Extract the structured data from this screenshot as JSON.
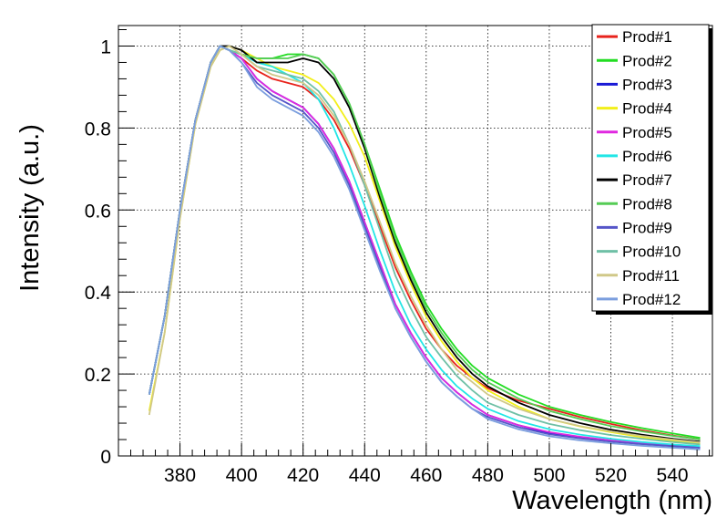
{
  "chart_data": {
    "type": "line",
    "title": "",
    "xlabel": "Wavelength (nm)",
    "ylabel": "Intensity (a.u.)",
    "xlim": [
      360,
      553
    ],
    "ylim": [
      0,
      1.05
    ],
    "x_ticks": [
      380,
      400,
      420,
      440,
      460,
      480,
      500,
      520,
      540
    ],
    "y_ticks": [
      0,
      0.2,
      0.4,
      0.6,
      0.8,
      1
    ],
    "x_tick_labels": [
      "380",
      "400",
      "420",
      "440",
      "460",
      "480",
      "500",
      "520",
      "540"
    ],
    "y_tick_labels": [
      "0",
      "0.2",
      "0.4",
      "0.6",
      "0.8",
      "1"
    ],
    "grid": true,
    "legend_position": "top-right",
    "x": [
      370,
      375,
      380,
      385,
      390,
      393,
      396,
      400,
      405,
      410,
      415,
      420,
      425,
      430,
      435,
      440,
      445,
      450,
      455,
      460,
      465,
      470,
      475,
      480,
      490,
      500,
      510,
      520,
      530,
      540,
      549
    ],
    "series": [
      {
        "name": "Prod#1",
        "color": "#e8231c",
        "values": [
          0.15,
          0.34,
          0.6,
          0.82,
          0.96,
          1.0,
          0.99,
          0.97,
          0.94,
          0.92,
          0.91,
          0.9,
          0.87,
          0.82,
          0.75,
          0.66,
          0.56,
          0.46,
          0.38,
          0.31,
          0.26,
          0.22,
          0.19,
          0.165,
          0.135,
          0.115,
          0.095,
          0.078,
          0.063,
          0.05,
          0.04
        ]
      },
      {
        "name": "Prod#2",
        "color": "#22dd22",
        "values": [
          0.15,
          0.34,
          0.6,
          0.82,
          0.96,
          1.0,
          0.99,
          0.98,
          0.97,
          0.97,
          0.98,
          0.98,
          0.97,
          0.93,
          0.86,
          0.76,
          0.65,
          0.54,
          0.45,
          0.37,
          0.31,
          0.26,
          0.22,
          0.19,
          0.15,
          0.12,
          0.1,
          0.083,
          0.068,
          0.055,
          0.044
        ]
      },
      {
        "name": "Prod#3",
        "color": "#1a1ad6",
        "values": [
          0.15,
          0.34,
          0.6,
          0.82,
          0.96,
          1.0,
          0.99,
          0.97,
          0.92,
          0.89,
          0.87,
          0.85,
          0.81,
          0.75,
          0.67,
          0.57,
          0.47,
          0.37,
          0.3,
          0.24,
          0.19,
          0.155,
          0.125,
          0.1,
          0.075,
          0.055,
          0.045,
          0.036,
          0.029,
          0.024,
          0.02
        ]
      },
      {
        "name": "Prod#4",
        "color": "#f2ef1a",
        "values": [
          0.11,
          0.3,
          0.58,
          0.81,
          0.95,
          0.99,
          1.0,
          0.99,
          0.97,
          0.95,
          0.94,
          0.93,
          0.91,
          0.87,
          0.81,
          0.73,
          0.62,
          0.51,
          0.42,
          0.34,
          0.28,
          0.23,
          0.19,
          0.16,
          0.12,
          0.09,
          0.072,
          0.058,
          0.046,
          0.037,
          0.03
        ]
      },
      {
        "name": "Prod#5",
        "color": "#e028e0",
        "values": [
          0.15,
          0.34,
          0.6,
          0.82,
          0.96,
          1.0,
          0.99,
          0.97,
          0.92,
          0.89,
          0.87,
          0.85,
          0.81,
          0.75,
          0.67,
          0.57,
          0.47,
          0.37,
          0.3,
          0.24,
          0.19,
          0.155,
          0.125,
          0.1,
          0.075,
          0.058,
          0.047,
          0.038,
          0.031,
          0.026,
          0.022
        ]
      },
      {
        "name": "Prod#6",
        "color": "#22e6e6",
        "values": [
          0.15,
          0.34,
          0.6,
          0.82,
          0.96,
          1.0,
          0.99,
          0.98,
          0.96,
          0.95,
          0.93,
          0.91,
          0.87,
          0.8,
          0.71,
          0.61,
          0.5,
          0.4,
          0.32,
          0.26,
          0.21,
          0.17,
          0.14,
          0.115,
          0.085,
          0.065,
          0.052,
          0.042,
          0.034,
          0.028,
          0.024
        ]
      },
      {
        "name": "Prod#7",
        "color": "#000000",
        "values": [
          0.15,
          0.34,
          0.6,
          0.82,
          0.96,
          1.0,
          1.0,
          0.99,
          0.96,
          0.96,
          0.96,
          0.97,
          0.96,
          0.92,
          0.85,
          0.75,
          0.63,
          0.52,
          0.43,
          0.35,
          0.29,
          0.24,
          0.2,
          0.17,
          0.13,
          0.1,
          0.08,
          0.064,
          0.052,
          0.042,
          0.035
        ]
      },
      {
        "name": "Prod#8",
        "color": "#55cc55",
        "values": [
          0.15,
          0.34,
          0.6,
          0.82,
          0.96,
          1.0,
          0.99,
          0.98,
          0.97,
          0.97,
          0.97,
          0.98,
          0.97,
          0.93,
          0.86,
          0.76,
          0.64,
          0.53,
          0.44,
          0.36,
          0.3,
          0.25,
          0.21,
          0.18,
          0.14,
          0.11,
          0.09,
          0.073,
          0.06,
          0.049,
          0.04
        ]
      },
      {
        "name": "Prod#9",
        "color": "#5555c8",
        "values": [
          0.15,
          0.34,
          0.6,
          0.82,
          0.96,
          1.0,
          0.99,
          0.96,
          0.91,
          0.88,
          0.86,
          0.84,
          0.8,
          0.74,
          0.66,
          0.56,
          0.46,
          0.36,
          0.29,
          0.23,
          0.18,
          0.145,
          0.115,
          0.095,
          0.07,
          0.053,
          0.043,
          0.035,
          0.029,
          0.024,
          0.02
        ]
      },
      {
        "name": "Prod#10",
        "color": "#6fc0a6",
        "values": [
          0.15,
          0.34,
          0.6,
          0.82,
          0.96,
          1.0,
          0.99,
          0.98,
          0.95,
          0.94,
          0.93,
          0.92,
          0.89,
          0.84,
          0.76,
          0.66,
          0.55,
          0.44,
          0.36,
          0.29,
          0.24,
          0.195,
          0.16,
          0.13,
          0.1,
          0.078,
          0.063,
          0.051,
          0.042,
          0.034,
          0.028
        ]
      },
      {
        "name": "Prod#11",
        "color": "#d0c888",
        "values": [
          0.1,
          0.3,
          0.58,
          0.81,
          0.95,
          0.99,
          1.0,
          0.98,
          0.95,
          0.93,
          0.92,
          0.91,
          0.88,
          0.83,
          0.76,
          0.67,
          0.57,
          0.47,
          0.39,
          0.32,
          0.26,
          0.21,
          0.18,
          0.15,
          0.115,
          0.09,
          0.073,
          0.06,
          0.049,
          0.04,
          0.033
        ]
      },
      {
        "name": "Prod#12",
        "color": "#7b9ede",
        "values": [
          0.15,
          0.34,
          0.6,
          0.82,
          0.96,
          1.0,
          0.99,
          0.96,
          0.9,
          0.87,
          0.85,
          0.83,
          0.79,
          0.73,
          0.65,
          0.55,
          0.45,
          0.36,
          0.29,
          0.23,
          0.18,
          0.145,
          0.115,
          0.09,
          0.065,
          0.048,
          0.038,
          0.031,
          0.025,
          0.02,
          0.016
        ]
      }
    ]
  }
}
